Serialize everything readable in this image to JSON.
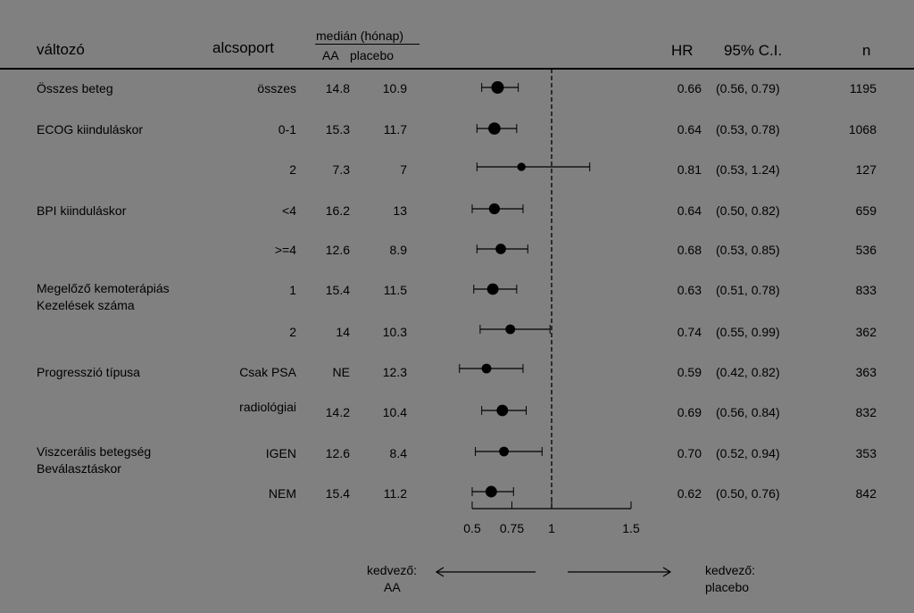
{
  "header": {
    "variable": "változó",
    "subgroup": "alcsoport",
    "median_title": "medián (hónap)",
    "median_aa": "AA",
    "median_placebo": "placebo",
    "hr": "HR",
    "ci": "95% C.I.",
    "n": "n"
  },
  "rows": [
    {
      "group": "Összes beteg",
      "sub": "összes",
      "aa": "14.8",
      "placebo": "10.9",
      "hr": "0.66",
      "ci": "(0.56,  0.79)",
      "n": "1195"
    },
    {
      "group": "ECOG kiinduláskor",
      "sub": "0-1",
      "aa": "15.3",
      "placebo": "11.7",
      "hr": "0.64",
      "ci": "(0.53,  0.78)",
      "n": "1068"
    },
    {
      "group": "",
      "sub": "2",
      "aa": "7.3",
      "placebo": "7",
      "hr": "0.81",
      "ci": "(0.53,  1.24)",
      "n": "127"
    },
    {
      "group": "BPI kiinduláskor",
      "sub": "<4",
      "aa": "16.2",
      "placebo": "13",
      "hr": "0.64",
      "ci": "(0.50,  0.82)",
      "n": "659"
    },
    {
      "group": "",
      "sub": ">=4",
      "aa": "12.6",
      "placebo": "8.9",
      "hr": "0.68",
      "ci": "(0.53,  0.85)",
      "n": "536"
    },
    {
      "group": "Megelőző kemoterápiás",
      "group2": "Kezelések száma",
      "sub": "1",
      "aa": "15.4",
      "placebo": "11.5",
      "hr": "0.63",
      "ci": "(0.51,  0.78)",
      "n": "833"
    },
    {
      "group": "",
      "sub": "2",
      "aa": "14",
      "placebo": "10.3",
      "hr": "0.74",
      "ci": "(0.55,  0.99)",
      "n": "362"
    },
    {
      "group": "Progresszió típusa",
      "sub": "Csak PSA",
      "aa": "NE",
      "placebo": "12.3",
      "hr": "0.59",
      "ci": "(0.42,  0.82)",
      "n": "363"
    },
    {
      "group": "",
      "sub": "radiológiai",
      "aa": "14.2",
      "placebo": "10.4",
      "hr": "0.69",
      "ci": "(0.56,  0.84)",
      "n": "832"
    },
    {
      "group": "Viszcerális betegség",
      "group2": "Beválasztáskor",
      "sub": "IGEN",
      "aa": "12.6",
      "placebo": "8.4",
      "hr": "0.70",
      "ci": "(0.52,  0.94)",
      "n": "353"
    },
    {
      "group": "",
      "sub": "NEM",
      "aa": "15.4",
      "placebo": "11.2",
      "hr": "0.62",
      "ci": "(0.50,  0.76)",
      "n": "842"
    }
  ],
  "footer": {
    "left_l1": "kedvező:",
    "left_l2": "AA",
    "right_l1": "kedvező:",
    "right_l2": "placebo"
  },
  "chart_data": {
    "type": "scatter",
    "subtype": "forest",
    "x_ticks": [
      "0.5",
      "0.75",
      "1",
      "1.5"
    ],
    "x_tick_values": [
      0.5,
      0.75,
      1,
      1.5
    ],
    "reference_line": 1,
    "xlim": [
      0.5,
      1.5
    ],
    "points": [
      {
        "hr": 0.66,
        "lo": 0.56,
        "hi": 0.79,
        "n": 1195
      },
      {
        "hr": 0.64,
        "lo": 0.53,
        "hi": 0.78,
        "n": 1068
      },
      {
        "hr": 0.81,
        "lo": 0.53,
        "hi": 1.24,
        "n": 127
      },
      {
        "hr": 0.64,
        "lo": 0.5,
        "hi": 0.82,
        "n": 659
      },
      {
        "hr": 0.68,
        "lo": 0.53,
        "hi": 0.85,
        "n": 536
      },
      {
        "hr": 0.63,
        "lo": 0.51,
        "hi": 0.78,
        "n": 833
      },
      {
        "hr": 0.74,
        "lo": 0.55,
        "hi": 0.99,
        "n": 362
      },
      {
        "hr": 0.59,
        "lo": 0.42,
        "hi": 0.82,
        "n": 363
      },
      {
        "hr": 0.69,
        "lo": 0.56,
        "hi": 0.84,
        "n": 832
      },
      {
        "hr": 0.7,
        "lo": 0.52,
        "hi": 0.94,
        "n": 353
      },
      {
        "hr": 0.62,
        "lo": 0.5,
        "hi": 0.76,
        "n": 842
      }
    ]
  }
}
